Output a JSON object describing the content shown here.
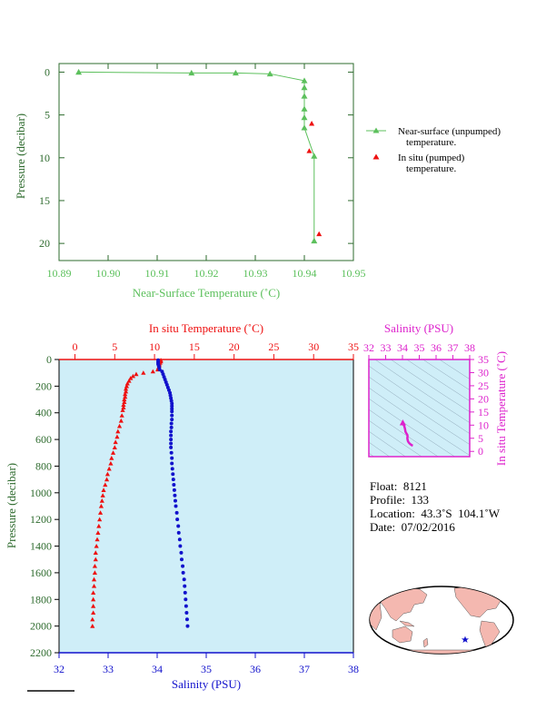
{
  "top_chart": {
    "xlabel": "Near-Surface Temperature (˚C)",
    "ylabel": "Pressure (decibar)",
    "xticks": [
      "10.89",
      "10.90",
      "10.91",
      "10.92",
      "10.93",
      "10.94",
      "10.95"
    ],
    "yticks": [
      "0",
      "5",
      "10",
      "15",
      "20"
    ],
    "legend": [
      {
        "label1": "Near-surface (unpumped)",
        "label2": "temperature."
      },
      {
        "label1": "In situ (pumped)",
        "label2": "temperature."
      }
    ],
    "colors": {
      "near_surface": "#5cc05c",
      "in_situ": "#ee1111"
    }
  },
  "main_chart": {
    "top_label": "In situ Temperature (˚C)",
    "bottom_label": "Salinity (PSU)",
    "ylabel": "Pressure (decibar)",
    "temp_ticks": [
      "0",
      "5",
      "10",
      "15",
      "20",
      "25",
      "30",
      "35"
    ],
    "sal_ticks": [
      "32",
      "33",
      "34",
      "35",
      "36",
      "37",
      "38"
    ],
    "pres_ticks": [
      "0",
      "200",
      "400",
      "600",
      "800",
      "1000",
      "1200",
      "1400",
      "1600",
      "1800",
      "2000",
      "2200"
    ],
    "colors": {
      "temperature": "#ee1111",
      "salinity": "#1111cc",
      "background": "#cfeef8"
    }
  },
  "ts_chart": {
    "top_label": "Salinity (PSU)",
    "right_label": "In situ Temperature (˚C)",
    "sal_ticks": [
      "32",
      "33",
      "34",
      "35",
      "36",
      "37",
      "38"
    ],
    "temp_ticks": [
      "0",
      "5",
      "10",
      "15",
      "20",
      "25",
      "30",
      "35"
    ],
    "color": "#dd22cc"
  },
  "info": {
    "float": "Float:  8121",
    "profile": "Profile:  133",
    "location": "Location:  43.3˚S  104.1˚W",
    "date": "Date:  07/02/2016"
  },
  "chart_data": [
    {
      "type": "line",
      "title": "",
      "xlabel": "Near-Surface Temperature (˚C)",
      "ylabel": "Pressure (decibar)",
      "xlim": [
        10.89,
        10.95
      ],
      "ylim": [
        22,
        -1
      ],
      "series": [
        {
          "name": "Near-surface (unpumped) temperature.",
          "marker": "triangle",
          "line": true,
          "points": [
            [
              10.894,
              0.0
            ],
            [
              10.917,
              0.1
            ],
            [
              10.926,
              0.1
            ],
            [
              10.933,
              0.2
            ],
            [
              10.94,
              1.0
            ],
            [
              10.94,
              1.8
            ],
            [
              10.94,
              2.8
            ],
            [
              10.94,
              4.3
            ],
            [
              10.94,
              5.3
            ],
            [
              10.94,
              6.5
            ],
            [
              10.942,
              9.8
            ],
            [
              10.942,
              19.7
            ]
          ]
        },
        {
          "name": "In situ (pumped) temperature.",
          "marker": "triangle",
          "line": false,
          "points": [
            [
              10.9415,
              6.0
            ],
            [
              10.941,
              9.2
            ],
            [
              10.943,
              18.9
            ]
          ]
        }
      ]
    },
    {
      "type": "scatter",
      "title": "",
      "ylabel": "Pressure (decibar)",
      "ylim": [
        2200,
        0
      ],
      "temperature": {
        "axis_label": "In situ Temperature (˚C)",
        "xlim": [
          -2,
          35
        ],
        "points": [
          [
            10.8,
            5
          ],
          [
            10.8,
            15
          ],
          [
            10.7,
            25
          ],
          [
            10.6,
            35
          ],
          [
            10.6,
            45
          ],
          [
            10.5,
            60
          ],
          [
            10.4,
            75
          ],
          [
            9.8,
            90
          ],
          [
            8.6,
            100
          ],
          [
            7.7,
            110
          ],
          [
            7.3,
            125
          ],
          [
            7.0,
            140
          ],
          [
            6.8,
            160
          ],
          [
            6.6,
            180
          ],
          [
            6.5,
            200
          ],
          [
            6.4,
            220
          ],
          [
            6.4,
            240
          ],
          [
            6.3,
            260
          ],
          [
            6.3,
            280
          ],
          [
            6.2,
            300
          ],
          [
            6.2,
            320
          ],
          [
            6.1,
            340
          ],
          [
            6.1,
            360
          ],
          [
            6.0,
            380
          ],
          [
            5.9,
            420
          ],
          [
            5.8,
            460
          ],
          [
            5.6,
            500
          ],
          [
            5.4,
            540
          ],
          [
            5.3,
            580
          ],
          [
            5.1,
            620
          ],
          [
            5.0,
            660
          ],
          [
            4.8,
            700
          ],
          [
            4.6,
            740
          ],
          [
            4.5,
            780
          ],
          [
            4.3,
            820
          ],
          [
            4.1,
            860
          ],
          [
            4.0,
            900
          ],
          [
            3.8,
            940
          ],
          [
            3.6,
            980
          ],
          [
            3.5,
            1020
          ],
          [
            3.4,
            1060
          ],
          [
            3.3,
            1100
          ],
          [
            3.2,
            1150
          ],
          [
            3.1,
            1200
          ],
          [
            3.0,
            1250
          ],
          [
            2.9,
            1300
          ],
          [
            2.8,
            1350
          ],
          [
            2.7,
            1400
          ],
          [
            2.6,
            1450
          ],
          [
            2.6,
            1500
          ],
          [
            2.5,
            1550
          ],
          [
            2.5,
            1600
          ],
          [
            2.4,
            1650
          ],
          [
            2.4,
            1700
          ],
          [
            2.3,
            1750
          ],
          [
            2.3,
            1800
          ],
          [
            2.3,
            1850
          ],
          [
            2.3,
            1900
          ],
          [
            2.2,
            1950
          ],
          [
            2.2,
            2000
          ]
        ]
      },
      "salinity": {
        "axis_label": "Salinity (PSU)",
        "xlim": [
          32,
          38
        ],
        "points": [
          [
            34.02,
            5
          ],
          [
            34.02,
            15
          ],
          [
            34.02,
            25
          ],
          [
            34.02,
            35
          ],
          [
            34.03,
            45
          ],
          [
            34.04,
            60
          ],
          [
            34.05,
            75
          ],
          [
            34.1,
            90
          ],
          [
            34.12,
            110
          ],
          [
            34.14,
            130
          ],
          [
            34.16,
            150
          ],
          [
            34.18,
            170
          ],
          [
            34.2,
            190
          ],
          [
            34.22,
            210
          ],
          [
            34.24,
            230
          ],
          [
            34.26,
            250
          ],
          [
            34.27,
            270
          ],
          [
            34.28,
            290
          ],
          [
            34.29,
            310
          ],
          [
            34.3,
            330
          ],
          [
            34.3,
            350
          ],
          [
            34.3,
            370
          ],
          [
            34.3,
            390
          ],
          [
            34.3,
            420
          ],
          [
            34.3,
            450
          ],
          [
            34.29,
            480
          ],
          [
            34.29,
            510
          ],
          [
            34.28,
            540
          ],
          [
            34.28,
            570
          ],
          [
            34.28,
            600
          ],
          [
            34.28,
            630
          ],
          [
            34.28,
            660
          ],
          [
            34.29,
            700
          ],
          [
            34.3,
            740
          ],
          [
            34.3,
            780
          ],
          [
            34.31,
            820
          ],
          [
            34.32,
            860
          ],
          [
            34.33,
            900
          ],
          [
            34.34,
            940
          ],
          [
            34.35,
            980
          ],
          [
            34.36,
            1020
          ],
          [
            34.37,
            1060
          ],
          [
            34.38,
            1100
          ],
          [
            34.4,
            1150
          ],
          [
            34.41,
            1200
          ],
          [
            34.43,
            1250
          ],
          [
            34.44,
            1300
          ],
          [
            34.46,
            1350
          ],
          [
            34.47,
            1400
          ],
          [
            34.49,
            1450
          ],
          [
            34.5,
            1500
          ],
          [
            34.52,
            1550
          ],
          [
            34.53,
            1600
          ],
          [
            34.55,
            1650
          ],
          [
            34.56,
            1700
          ],
          [
            34.57,
            1750
          ],
          [
            34.58,
            1800
          ],
          [
            34.59,
            1850
          ],
          [
            34.6,
            1900
          ],
          [
            34.61,
            1950
          ],
          [
            34.62,
            2000
          ]
        ]
      }
    },
    {
      "type": "line",
      "title": "",
      "xlabel": "Salinity (PSU)",
      "ylabel": "In situ Temperature (˚C)",
      "xlim": [
        32,
        38
      ],
      "ylim": [
        -2,
        35
      ],
      "series": [
        {
          "name": "",
          "points": [
            [
              34.02,
              10.8
            ],
            [
              34.02,
              10.5
            ],
            [
              34.1,
              9.8
            ],
            [
              34.15,
              8.6
            ],
            [
              34.18,
              7.5
            ],
            [
              34.22,
              7.0
            ],
            [
              34.26,
              6.6
            ],
            [
              34.29,
              6.3
            ],
            [
              34.3,
              6.0
            ],
            [
              34.3,
              5.6
            ],
            [
              34.29,
              5.0
            ],
            [
              34.3,
              4.6
            ],
            [
              34.32,
              4.0
            ],
            [
              34.36,
              3.5
            ],
            [
              34.41,
              3.1
            ],
            [
              34.46,
              2.8
            ],
            [
              34.52,
              2.5
            ],
            [
              34.57,
              2.3
            ],
            [
              34.62,
              2.2
            ]
          ]
        }
      ]
    }
  ]
}
